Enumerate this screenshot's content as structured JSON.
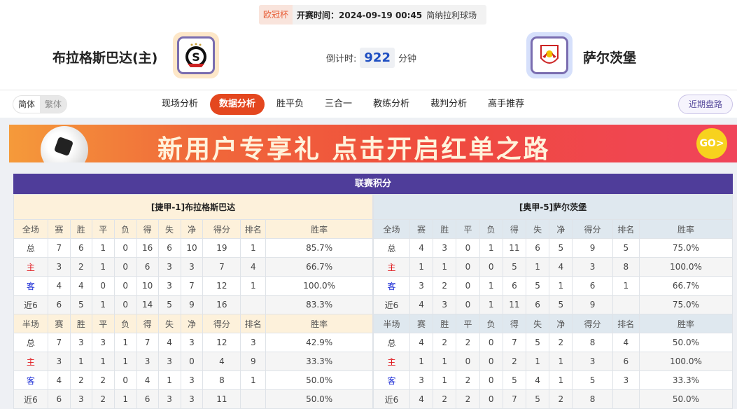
{
  "match": {
    "competition": "欧冠杯",
    "kickoff": "开赛时间：2024-09-19 00:45",
    "venue": "简纳拉利球场",
    "home": "布拉格斯巴达(主)",
    "away": "萨尔茨堡",
    "countdown_label": "倒计时:",
    "countdown_value": "922",
    "countdown_unit": "分钟"
  },
  "lang": {
    "simplified": "简体",
    "traditional": "繁体"
  },
  "tabs": [
    "现场分析",
    "数据分析",
    "胜平负",
    "三合一",
    "教练分析",
    "裁判分析",
    "高手推荐"
  ],
  "active_tab": "数据分析",
  "recent_button": "近期盘路",
  "banner": {
    "text": "新用户专享礼  点击开启红单之路",
    "go": "GO>"
  },
  "standings": {
    "title": "联赛积分",
    "columns_full": [
      "全场",
      "赛",
      "胜",
      "平",
      "负",
      "得",
      "失",
      "净",
      "得分",
      "排名",
      "胜率"
    ],
    "columns_half": [
      "半场",
      "赛",
      "胜",
      "平",
      "负",
      "得",
      "失",
      "净",
      "得分",
      "排名",
      "胜率"
    ],
    "teams": [
      {
        "caption": "[捷甲-1]布拉格斯巴达",
        "full": [
          [
            "总",
            "7",
            "6",
            "1",
            "0",
            "16",
            "6",
            "10",
            "19",
            "1",
            "85.7%"
          ],
          [
            "主",
            "3",
            "2",
            "1",
            "0",
            "6",
            "3",
            "3",
            "7",
            "4",
            "66.7%"
          ],
          [
            "客",
            "4",
            "4",
            "0",
            "0",
            "10",
            "3",
            "7",
            "12",
            "1",
            "100.0%"
          ],
          [
            "近6",
            "6",
            "5",
            "1",
            "0",
            "14",
            "5",
            "9",
            "16",
            "",
            "83.3%"
          ]
        ],
        "half": [
          [
            "总",
            "7",
            "3",
            "3",
            "1",
            "7",
            "4",
            "3",
            "12",
            "3",
            "42.9%"
          ],
          [
            "主",
            "3",
            "1",
            "1",
            "1",
            "3",
            "3",
            "0",
            "4",
            "9",
            "33.3%"
          ],
          [
            "客",
            "4",
            "2",
            "2",
            "0",
            "4",
            "1",
            "3",
            "8",
            "1",
            "50.0%"
          ],
          [
            "近6",
            "6",
            "3",
            "2",
            "1",
            "6",
            "3",
            "3",
            "11",
            "",
            "50.0%"
          ]
        ]
      },
      {
        "caption": "[奥甲-5]萨尔茨堡",
        "full": [
          [
            "总",
            "4",
            "3",
            "0",
            "1",
            "11",
            "6",
            "5",
            "9",
            "5",
            "75.0%"
          ],
          [
            "主",
            "1",
            "1",
            "0",
            "0",
            "5",
            "1",
            "4",
            "3",
            "8",
            "100.0%"
          ],
          [
            "客",
            "3",
            "2",
            "0",
            "1",
            "6",
            "5",
            "1",
            "6",
            "1",
            "66.7%"
          ],
          [
            "近6",
            "4",
            "3",
            "0",
            "1",
            "11",
            "6",
            "5",
            "9",
            "",
            "75.0%"
          ]
        ],
        "half": [
          [
            "总",
            "4",
            "2",
            "2",
            "0",
            "7",
            "5",
            "2",
            "8",
            "4",
            "50.0%"
          ],
          [
            "主",
            "1",
            "1",
            "0",
            "0",
            "2",
            "1",
            "1",
            "3",
            "6",
            "100.0%"
          ],
          [
            "客",
            "3",
            "1",
            "2",
            "0",
            "5",
            "4",
            "1",
            "5",
            "3",
            "33.3%"
          ],
          [
            "近6",
            "4",
            "2",
            "2",
            "0",
            "7",
            "5",
            "2",
            "8",
            "",
            "50.0%"
          ]
        ]
      }
    ]
  },
  "colors": {
    "accent": "#e4471f",
    "header": "#4f3d9a",
    "home_label": "#e0161b",
    "away_label": "#1e2ed6"
  }
}
